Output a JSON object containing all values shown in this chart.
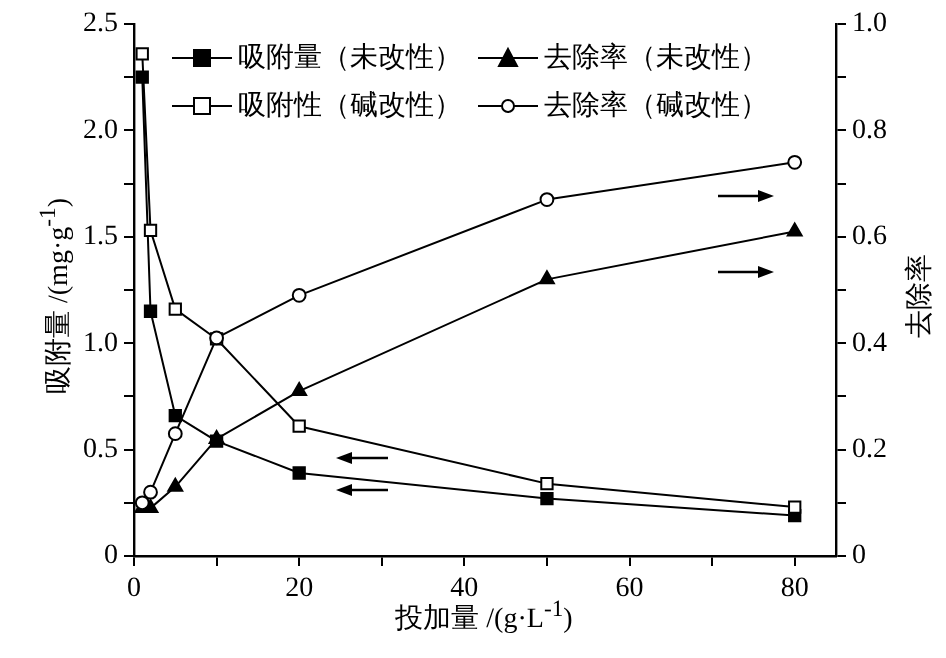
{
  "chart_data": {
    "type": "line",
    "xlabel": "投加量 /(g·L$^{-1}$)",
    "ylabel": "吸附量 /(mg·g$^{-1}$)",
    "y2label": "去除率",
    "x": [
      1,
      2,
      5,
      10,
      20,
      50,
      80
    ],
    "series": [
      {
        "name": "吸附量（未改性）",
        "color": "#000000",
        "marker": "square",
        "values": [
          2.25,
          1.15,
          0.66,
          0.54,
          0.39,
          0.27,
          0.19
        ]
      },
      {
        "name": "去除率（未改性）",
        "color": "#000000",
        "marker": "triangle",
        "axis": "y2",
        "values": [
          0.09,
          0.09,
          0.13,
          0.22,
          0.31,
          0.52,
          0.61
        ]
      },
      {
        "name": "吸附性（碱改性）",
        "color": "#000000",
        "marker": "square",
        "values": [
          2.36,
          1.53,
          1.16,
          1.02,
          0.61,
          0.34,
          0.23
        ]
      },
      {
        "name": "去除率（碱改性）",
        "color": "#000000",
        "marker": "circle",
        "axis": "y2",
        "values": [
          0.1,
          0.12,
          0.23,
          0.41,
          0.49,
          0.67,
          0.74
        ]
      }
    ],
    "xlim": [
      0,
      85
    ],
    "xticks": [
      0,
      {
        "value": 10,
        "label": null
      },
      20,
      {
        "value": 30,
        "label": null
      },
      40,
      {
        "value": 50,
        "label": null
      },
      60,
      {
        "value": 70,
        "label": null
      },
      80
    ],
    "ylim": [
      0,
      2.5
    ],
    "yticks": [
      0,
      {
        "value": 0.25,
        "label": null
      },
      0.5,
      {
        "value": 0.75,
        "label": null
      },
      {
        "value": 1,
        "label": "1.0"
      },
      {
        "value": 1.25,
        "label": null
      },
      1.5,
      {
        "value": 1.75,
        "label": null
      },
      {
        "value": 2,
        "label": "2.0"
      },
      {
        "value": 2.25,
        "label": null
      },
      2.5
    ],
    "y2lim": [
      0,
      1
    ],
    "y2ticks": [
      0,
      {
        "value": 0.1,
        "label": null
      },
      0.2,
      {
        "value": 0.3,
        "label": null
      },
      0.4,
      {
        "value": 0.5,
        "label": null
      },
      0.6,
      {
        "value": 0.7,
        "label": null
      },
      0.8,
      {
        "value": 0.9,
        "label": null
      },
      {
        "value": 1,
        "label": "1.0"
      }
    ],
    "grid": false,
    "legend": "top",
    "line_style": "solid"
  }
}
